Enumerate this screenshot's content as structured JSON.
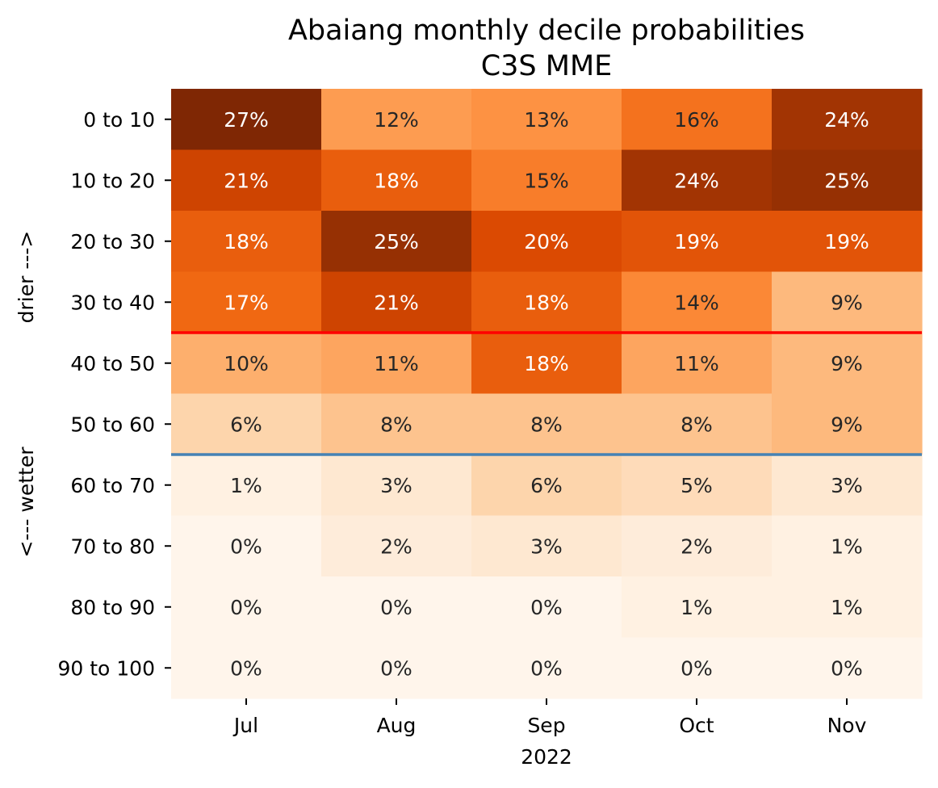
{
  "chart_data": {
    "type": "heatmap",
    "title": "Abaiang monthly decile probabilities",
    "subtitle": "C3S MME",
    "xlabel": "2022",
    "ylabel_top": "drier --->",
    "ylabel_bottom": "<--- wetter",
    "columns": [
      "Jul",
      "Aug",
      "Sep",
      "Oct",
      "Nov"
    ],
    "rows": [
      "0 to 10",
      "10 to 20",
      "20 to 30",
      "30 to 40",
      "40 to 50",
      "50 to 60",
      "60 to 70",
      "70 to 80",
      "80 to 90",
      "90 to 100"
    ],
    "values": [
      [
        27,
        12,
        13,
        16,
        24
      ],
      [
        21,
        18,
        15,
        24,
        25
      ],
      [
        18,
        25,
        20,
        19,
        19
      ],
      [
        17,
        21,
        18,
        14,
        9
      ],
      [
        10,
        11,
        18,
        11,
        9
      ],
      [
        6,
        8,
        8,
        8,
        9
      ],
      [
        1,
        3,
        6,
        5,
        3
      ],
      [
        0,
        2,
        3,
        2,
        1
      ],
      [
        0,
        0,
        0,
        1,
        1
      ],
      [
        0,
        0,
        0,
        0,
        0
      ]
    ],
    "value_suffix": "%",
    "colormap": "Oranges",
    "color_range": [
      0,
      27
    ],
    "reference_lines": [
      {
        "after_row": "30 to 40",
        "color": "#ff0000"
      },
      {
        "after_row": "50 to 60",
        "color": "#4682b4"
      }
    ],
    "grid": false,
    "legend": "none"
  }
}
